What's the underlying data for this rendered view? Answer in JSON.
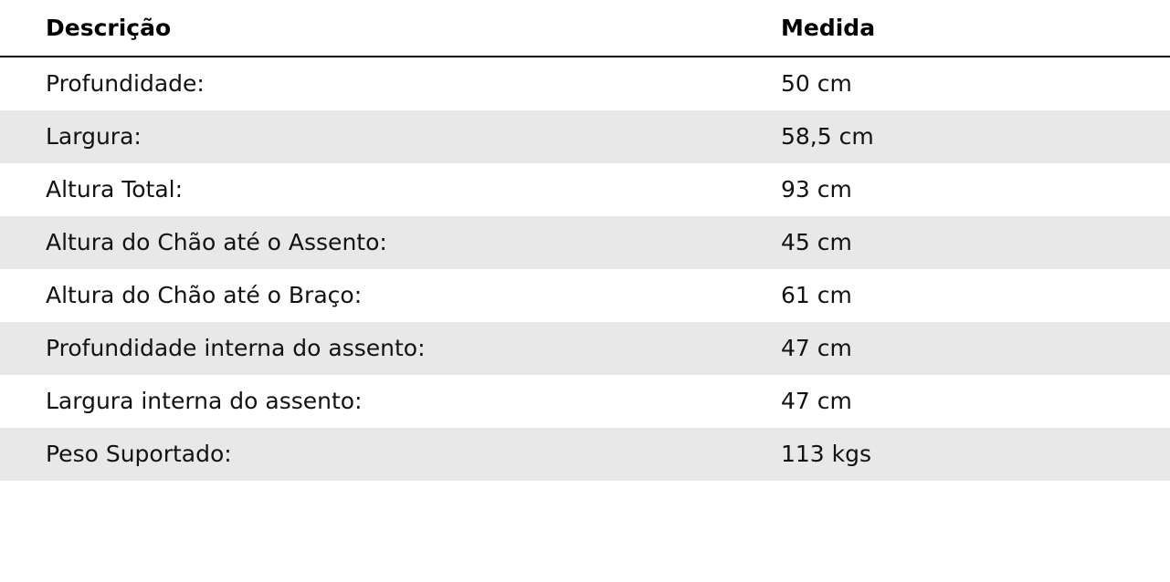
{
  "table": {
    "header": {
      "description": "Descrição",
      "measure": "Medida"
    },
    "rows": [
      {
        "label": "Profundidade:",
        "value": "50 cm"
      },
      {
        "label": "Largura:",
        "value": "58,5 cm"
      },
      {
        "label": "Altura Total:",
        "value": "93 cm"
      },
      {
        "label": "Altura do Chão até o Assento:",
        "value": "45 cm"
      },
      {
        "label": "Altura do Chão até o Braço:",
        "value": "61 cm"
      },
      {
        "label": "Profundidade interna do assento:",
        "value": "47 cm"
      },
      {
        "label": "Largura interna do assento:",
        "value": "47 cm"
      },
      {
        "label": "Peso Suportado:",
        "value": "113 kgs"
      }
    ],
    "colors": {
      "stripe": "#e8e8e8",
      "divider": "#000000",
      "text": "#121212"
    }
  }
}
